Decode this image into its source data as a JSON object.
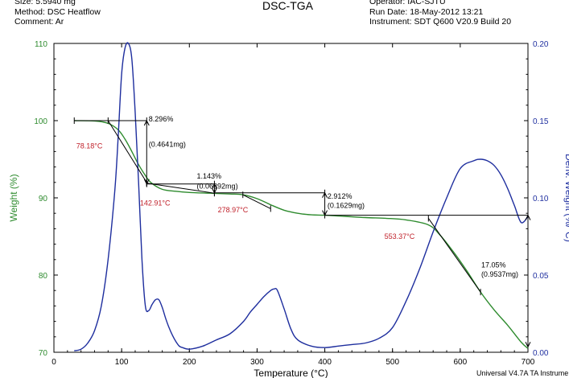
{
  "header": {
    "left": [
      "Size:  5.5940 mg",
      "Method: DSC Heatflow",
      "Comment: Ar"
    ],
    "title": "DSC-TGA",
    "right": [
      "Operator: IAC-SJTU",
      "Run Date: 18-May-2012 13:21",
      "Instrument: SDT Q600 V20.9 Build 20"
    ]
  },
  "footer": "Universal V4.7A TA Instrume",
  "colors": {
    "weight": "#2e8b2e",
    "deriv": "#1e2e9e",
    "temp_label": "#c0202a",
    "axis_left": "#2e8b2e",
    "axis_right": "#2030a0",
    "step_lines": "#000000"
  },
  "chart_data": {
    "type": "line",
    "xlabel": "Temperature (°C)",
    "ylabel_left": "Weight (%)",
    "ylabel_right": "Deriv. Weight (%/°C)",
    "xlim": [
      0,
      700
    ],
    "ylim_left": [
      70,
      110
    ],
    "ylim_right": [
      0.0,
      0.2
    ],
    "x_ticks": [
      "0",
      "100",
      "200",
      "300",
      "400",
      "500",
      "600",
      "700"
    ],
    "y_left_ticks": [
      "70",
      "80",
      "90",
      "100",
      "110"
    ],
    "y_right_ticks": [
      "0.00",
      "0.05",
      "0.10",
      "0.15",
      "0.20"
    ],
    "series": [
      {
        "axis": "left",
        "x": [
          30,
          60,
          80,
          95,
          105,
          115,
          125,
          135,
          143,
          160,
          180,
          200,
          230,
          260,
          279,
          300,
          320,
          340,
          360,
          380,
          400,
          430,
          460,
          490,
          520,
          553,
          570,
          590,
          610,
          630,
          650,
          670,
          690,
          700
        ],
        "values": [
          100,
          99.96,
          99.65,
          98.8,
          97.6,
          96.0,
          94.3,
          92.9,
          92.0,
          91.1,
          90.85,
          90.7,
          90.6,
          90.5,
          90.4,
          89.9,
          89.1,
          88.4,
          88.0,
          87.8,
          87.75,
          87.6,
          87.45,
          87.35,
          87.15,
          86.5,
          85.2,
          83.0,
          80.5,
          77.8,
          75.5,
          73.5,
          71.3,
          70.5
        ]
      },
      {
        "axis": "right",
        "x": [
          30,
          40,
          50,
          60,
          70,
          80,
          90,
          95,
          100,
          105,
          110,
          115,
          120,
          125,
          130,
          135,
          140,
          145,
          150,
          155,
          160,
          165,
          170,
          175,
          180,
          185,
          190,
          200,
          220,
          240,
          260,
          280,
          290,
          300,
          310,
          320,
          325,
          330,
          340,
          350,
          360,
          380,
          400,
          420,
          440,
          460,
          480,
          500,
          520,
          540,
          560,
          580,
          600,
          620,
          630,
          640,
          650,
          660,
          670,
          680,
          690,
          700
        ],
        "values": [
          0.001,
          0.002,
          0.006,
          0.014,
          0.03,
          0.06,
          0.105,
          0.14,
          0.18,
          0.197,
          0.2,
          0.19,
          0.155,
          0.11,
          0.06,
          0.03,
          0.027,
          0.031,
          0.034,
          0.034,
          0.029,
          0.022,
          0.016,
          0.011,
          0.007,
          0.004,
          0.003,
          0.002,
          0.004,
          0.008,
          0.012,
          0.02,
          0.026,
          0.031,
          0.036,
          0.04,
          0.041,
          0.04,
          0.028,
          0.015,
          0.008,
          0.004,
          0.003,
          0.004,
          0.005,
          0.006,
          0.009,
          0.016,
          0.033,
          0.054,
          0.078,
          0.1,
          0.119,
          0.124,
          0.125,
          0.124,
          0.121,
          0.115,
          0.106,
          0.095,
          0.084,
          0.088
        ]
      }
    ],
    "step_lines": [
      {
        "x1": 30,
        "y1": 100,
        "x2": 137,
        "y2": 100
      },
      {
        "x1": 137,
        "y1": 91.8,
        "x2": 237,
        "y2": 91.8
      },
      {
        "x1": 237,
        "y1": 90.65,
        "x2": 400,
        "y2": 90.65
      },
      {
        "x1": 400,
        "y1": 87.75,
        "x2": 700,
        "y2": 87.75
      }
    ],
    "tangents": [
      {
        "x1": 80,
        "y1": 100,
        "x2": 137,
        "y2": 92.0
      },
      {
        "x1": 137,
        "y1": 91.9,
        "x2": 237,
        "y2": 90.6
      },
      {
        "x1": 279,
        "y1": 90.4,
        "x2": 320,
        "y2": 88.6
      },
      {
        "x1": 553,
        "y1": 87.35,
        "x2": 630,
        "y2": 77.8
      }
    ],
    "step_arrows": [
      {
        "x": 137,
        "y_top": 100,
        "y_bottom": 91.8
      },
      {
        "x": 237,
        "y_top": 91.8,
        "y_bottom": 90.65
      },
      {
        "x": 400,
        "y_top": 90.65,
        "y_bottom": 87.75
      },
      {
        "x": 700,
        "y_top": 87.75,
        "y_bottom": 70.7
      }
    ],
    "annotations": [
      {
        "text": "8.296%",
        "x": 140,
        "y": 99.9,
        "color": "black"
      },
      {
        "text": "(0.4641mg)",
        "x": 140,
        "y": 96.6,
        "color": "black"
      },
      {
        "text": "1.143%",
        "x": 211,
        "y": 92.5,
        "color": "black"
      },
      {
        "text": "(0.06392mg)",
        "x": 211,
        "y": 91.2,
        "color": "black"
      },
      {
        "text": "2.912%",
        "x": 404,
        "y": 89.9,
        "color": "black"
      },
      {
        "text": "(0.1629mg)",
        "x": 404,
        "y": 88.7,
        "color": "black"
      },
      {
        "text": "17.05%",
        "x": 631,
        "y": 81.0,
        "color": "black"
      },
      {
        "text": "(0.9537mg)",
        "x": 631,
        "y": 79.8,
        "color": "black"
      },
      {
        "text": "78.18°C",
        "x": 33,
        "y": 96.4,
        "color": "red"
      },
      {
        "text": "142.91°C",
        "x": 127,
        "y": 89.0,
        "color": "red"
      },
      {
        "text": "278.97°C",
        "x": 242,
        "y": 88.1,
        "color": "red"
      },
      {
        "text": "553.37°C",
        "x": 488,
        "y": 84.7,
        "color": "red"
      }
    ]
  }
}
